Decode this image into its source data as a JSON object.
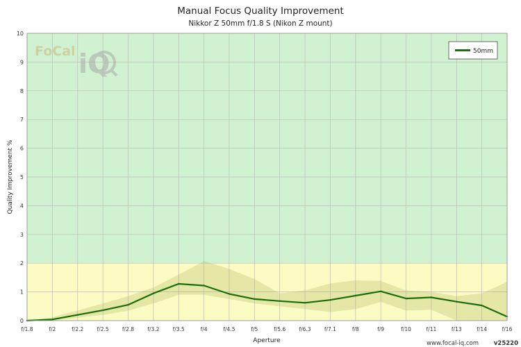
{
  "chart_data": {
    "type": "line",
    "title": "Manual Focus Quality Improvement",
    "subtitle": "Nikkor Z 50mm f/1.8 S (Nikon Z mount)",
    "xlabel": "Aperture",
    "ylabel": "Quality Improvement %",
    "ylim": [
      0,
      10
    ],
    "yticks": [
      "0",
      "1",
      "2",
      "3",
      "4",
      "5",
      "6",
      "7",
      "8",
      "9",
      "10"
    ],
    "categories": [
      "f/1.8",
      "f/2",
      "f/2.2",
      "f/2.5",
      "f/2.8",
      "f/3.2",
      "f/3.5",
      "f/4",
      "f/4.5",
      "f/5",
      "f/5.6",
      "f/6.3",
      "f/7.1",
      "f/8",
      "f/9",
      "f/10",
      "f/11",
      "f/13",
      "f/14",
      "f/16"
    ],
    "series": [
      {
        "name": "50mm",
        "color": "#1a6e0a",
        "values": [
          0.0,
          0.04,
          0.2,
          0.36,
          0.55,
          0.95,
          1.28,
          1.22,
          0.93,
          0.75,
          0.68,
          0.62,
          0.72,
          0.87,
          1.02,
          0.77,
          0.81,
          0.66,
          0.53,
          0.14
        ],
        "band_upper": [
          0.0,
          0.12,
          0.35,
          0.6,
          0.85,
          1.15,
          1.6,
          2.07,
          1.8,
          1.45,
          0.95,
          1.05,
          1.3,
          1.4,
          1.38,
          1.05,
          1.0,
          0.85,
          0.95,
          1.35
        ],
        "band_lower": [
          0.0,
          0.0,
          0.1,
          0.2,
          0.35,
          0.6,
          0.9,
          0.9,
          0.75,
          0.6,
          0.5,
          0.4,
          0.3,
          0.4,
          0.65,
          0.35,
          0.38,
          0.0,
          0.0,
          0.0
        ]
      }
    ],
    "zones": [
      {
        "from": 0,
        "to": 2,
        "color": "#fbfbc4"
      },
      {
        "from": 2,
        "to": 10,
        "color": "#d0f2d0"
      }
    ],
    "grid": true,
    "legend_position": "top-right"
  },
  "watermark": {
    "logo_text": "FoCal",
    "logo_mark": "iQ"
  },
  "footer": {
    "site": "www.focal-iq.com",
    "version": "v25220"
  }
}
